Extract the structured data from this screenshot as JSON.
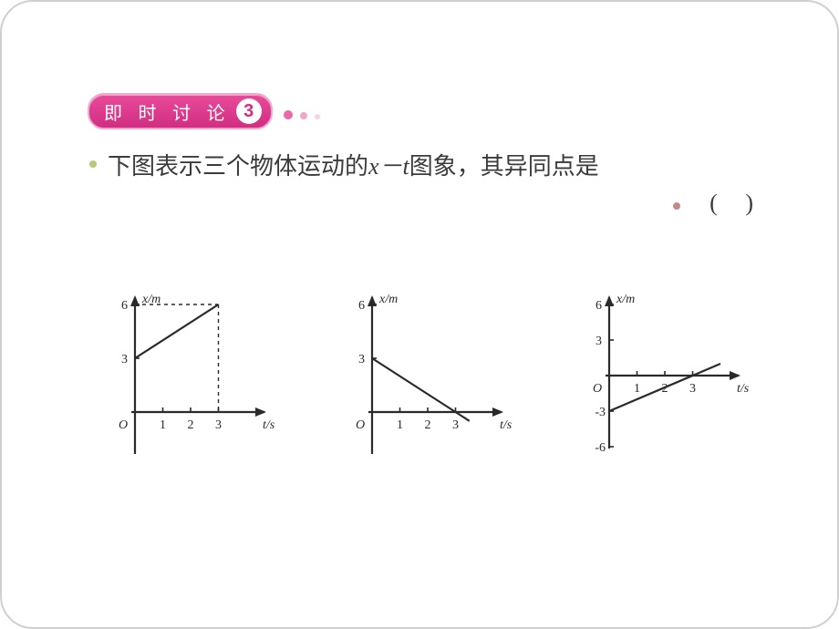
{
  "badge": {
    "label": "即 时 讨 论",
    "number": "3",
    "dot_colors": [
      "#e86aa6",
      "#f0a6c7",
      "#f7d2e3"
    ],
    "dot_sizes": [
      10,
      8,
      6
    ],
    "pill_text_color": "#ffffff",
    "pill_bg_from": "#e94b9a",
    "pill_bg_to": "#d12e82",
    "circle_bg": "#ffffff",
    "circle_text_color": "#d12e82"
  },
  "bullets": {
    "color_a": "#b8c97a",
    "color_b": "#c48a8a"
  },
  "question": {
    "prefix": "下图表示三个物体运动的",
    "var": "x－t",
    "suffix": "图象，其异同点是",
    "paren": "(    )"
  },
  "chart_common": {
    "type": "line",
    "axis_color": "#2a2a2a",
    "text_color": "#2a2a2a",
    "dash_color": "#2a2a2a",
    "label_fontsize": 14,
    "axis_fontsize": 14,
    "y_label": "x/m",
    "x_label": "t/s",
    "origin_label": "O",
    "x_ticks": [
      1,
      2,
      3
    ],
    "line_width": 2.2
  },
  "charts": [
    {
      "y_ticks_pos": [
        3,
        6
      ],
      "y_ticks_neg": [],
      "ylim": [
        0,
        6
      ],
      "line": {
        "t0": 0,
        "x0": 3,
        "t1": 3,
        "x1": 6
      },
      "drop_dash": true
    },
    {
      "y_ticks_pos": [
        3,
        6
      ],
      "y_ticks_neg": [],
      "ylim": [
        0,
        6
      ],
      "line": {
        "t0": 0,
        "x0": 3,
        "t1": 3,
        "x1": 0
      },
      "drop_dash": false,
      "extend_to_t": 3.5
    },
    {
      "y_ticks_pos": [
        3,
        6
      ],
      "y_ticks_neg": [
        -3,
        -6
      ],
      "ylim": [
        -6,
        6
      ],
      "line": {
        "t0": 0,
        "x0": -3,
        "t1": 3,
        "x1": 0
      },
      "drop_dash": false,
      "extend_to_t": 4
    }
  ]
}
